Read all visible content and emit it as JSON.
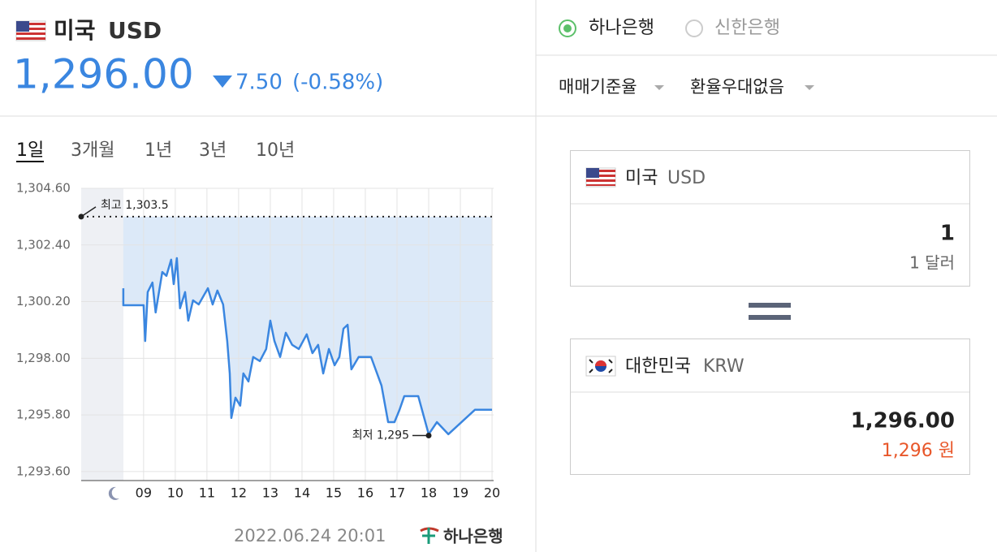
{
  "header": {
    "country": "미국",
    "code": "USD",
    "rate": "1,296.00",
    "change": "7.50",
    "change_pct": "(-0.58%)"
  },
  "tabs": [
    "1일",
    "3개월",
    "1년",
    "3년",
    "10년"
  ],
  "chart_data": {
    "type": "line",
    "color": "#3a86e0",
    "fill": "#dce9f8",
    "grid": true,
    "x": [
      8.36,
      8.36,
      9.0,
      9.05,
      9.13,
      9.28,
      9.38,
      9.59,
      9.72,
      9.87,
      9.95,
      10.05,
      10.15,
      10.31,
      10.41,
      10.56,
      10.74,
      11.03,
      11.18,
      11.33,
      11.51,
      11.64,
      11.72,
      11.77,
      11.9,
      12.05,
      12.15,
      12.31,
      12.46,
      12.67,
      12.87,
      13.0,
      13.13,
      13.31,
      13.49,
      13.69,
      13.9,
      14.15,
      14.33,
      14.51,
      14.67,
      14.85,
      15.03,
      15.18,
      15.31,
      15.44,
      15.56,
      15.79,
      16.18,
      16.51,
      16.72,
      16.92,
      17.08,
      17.23,
      17.67,
      18.0,
      18.26,
      18.62,
      19.46,
      20.0
    ],
    "values": [
      1300.72,
      1300.06,
      1300.06,
      1298.67,
      1300.57,
      1300.94,
      1299.78,
      1301.35,
      1301.2,
      1301.83,
      1300.88,
      1301.89,
      1299.94,
      1300.57,
      1299.46,
      1300.25,
      1300.09,
      1300.72,
      1300.09,
      1300.63,
      1300.09,
      1298.67,
      1297.41,
      1295.68,
      1296.47,
      1296.16,
      1297.41,
      1297.1,
      1298.05,
      1297.89,
      1298.36,
      1299.46,
      1298.67,
      1298.05,
      1298.99,
      1298.52,
      1298.36,
      1298.93,
      1298.2,
      1298.52,
      1297.41,
      1298.36,
      1297.73,
      1298.05,
      1299.15,
      1299.3,
      1297.57,
      1298.05,
      1298.05,
      1296.94,
      1295.52,
      1295.52,
      1296.0,
      1296.53,
      1296.53,
      1295.05,
      1295.52,
      1295.05,
      1296.0,
      1296.0
    ],
    "xlim": [
      7.03,
      20.05
    ],
    "xticks": [
      {
        "value": 9,
        "label": "09"
      },
      10,
      11,
      12,
      13,
      14,
      15,
      16,
      17,
      18,
      19,
      20
    ],
    "ylim": [
      1293.25,
      1304.6
    ],
    "yticks": [
      {
        "value": 1293.6,
        "label": "1,293.60"
      },
      {
        "value": 1295.8,
        "label": "1,295.80"
      },
      {
        "value": 1298,
        "label": "1,298.00"
      },
      {
        "value": 1300.2,
        "label": "1,300.20"
      },
      {
        "value": 1302.4,
        "label": "1,302.40"
      },
      {
        "value": 1304.6,
        "label": "1,304.60"
      }
    ],
    "annotations": [
      {
        "label": "최고 1,303.5",
        "value": 1303.5
      },
      {
        "label": "최저 1,295",
        "x": 18,
        "value": 1295
      }
    ]
  },
  "footer": {
    "timestamp": "2022.06.24 20:01",
    "logo": "하나은행"
  },
  "banks": [
    "하나은행",
    "신한은행"
  ],
  "options": [
    "매매기준율",
    "환율우대없음"
  ],
  "converter": {
    "from": {
      "country": "미국",
      "code": "USD",
      "amount": "1",
      "unit": "1 달러"
    },
    "to": {
      "country": "대한민국",
      "code": "KRW",
      "amount": "1,296.00",
      "unit": "1,296 원"
    }
  }
}
